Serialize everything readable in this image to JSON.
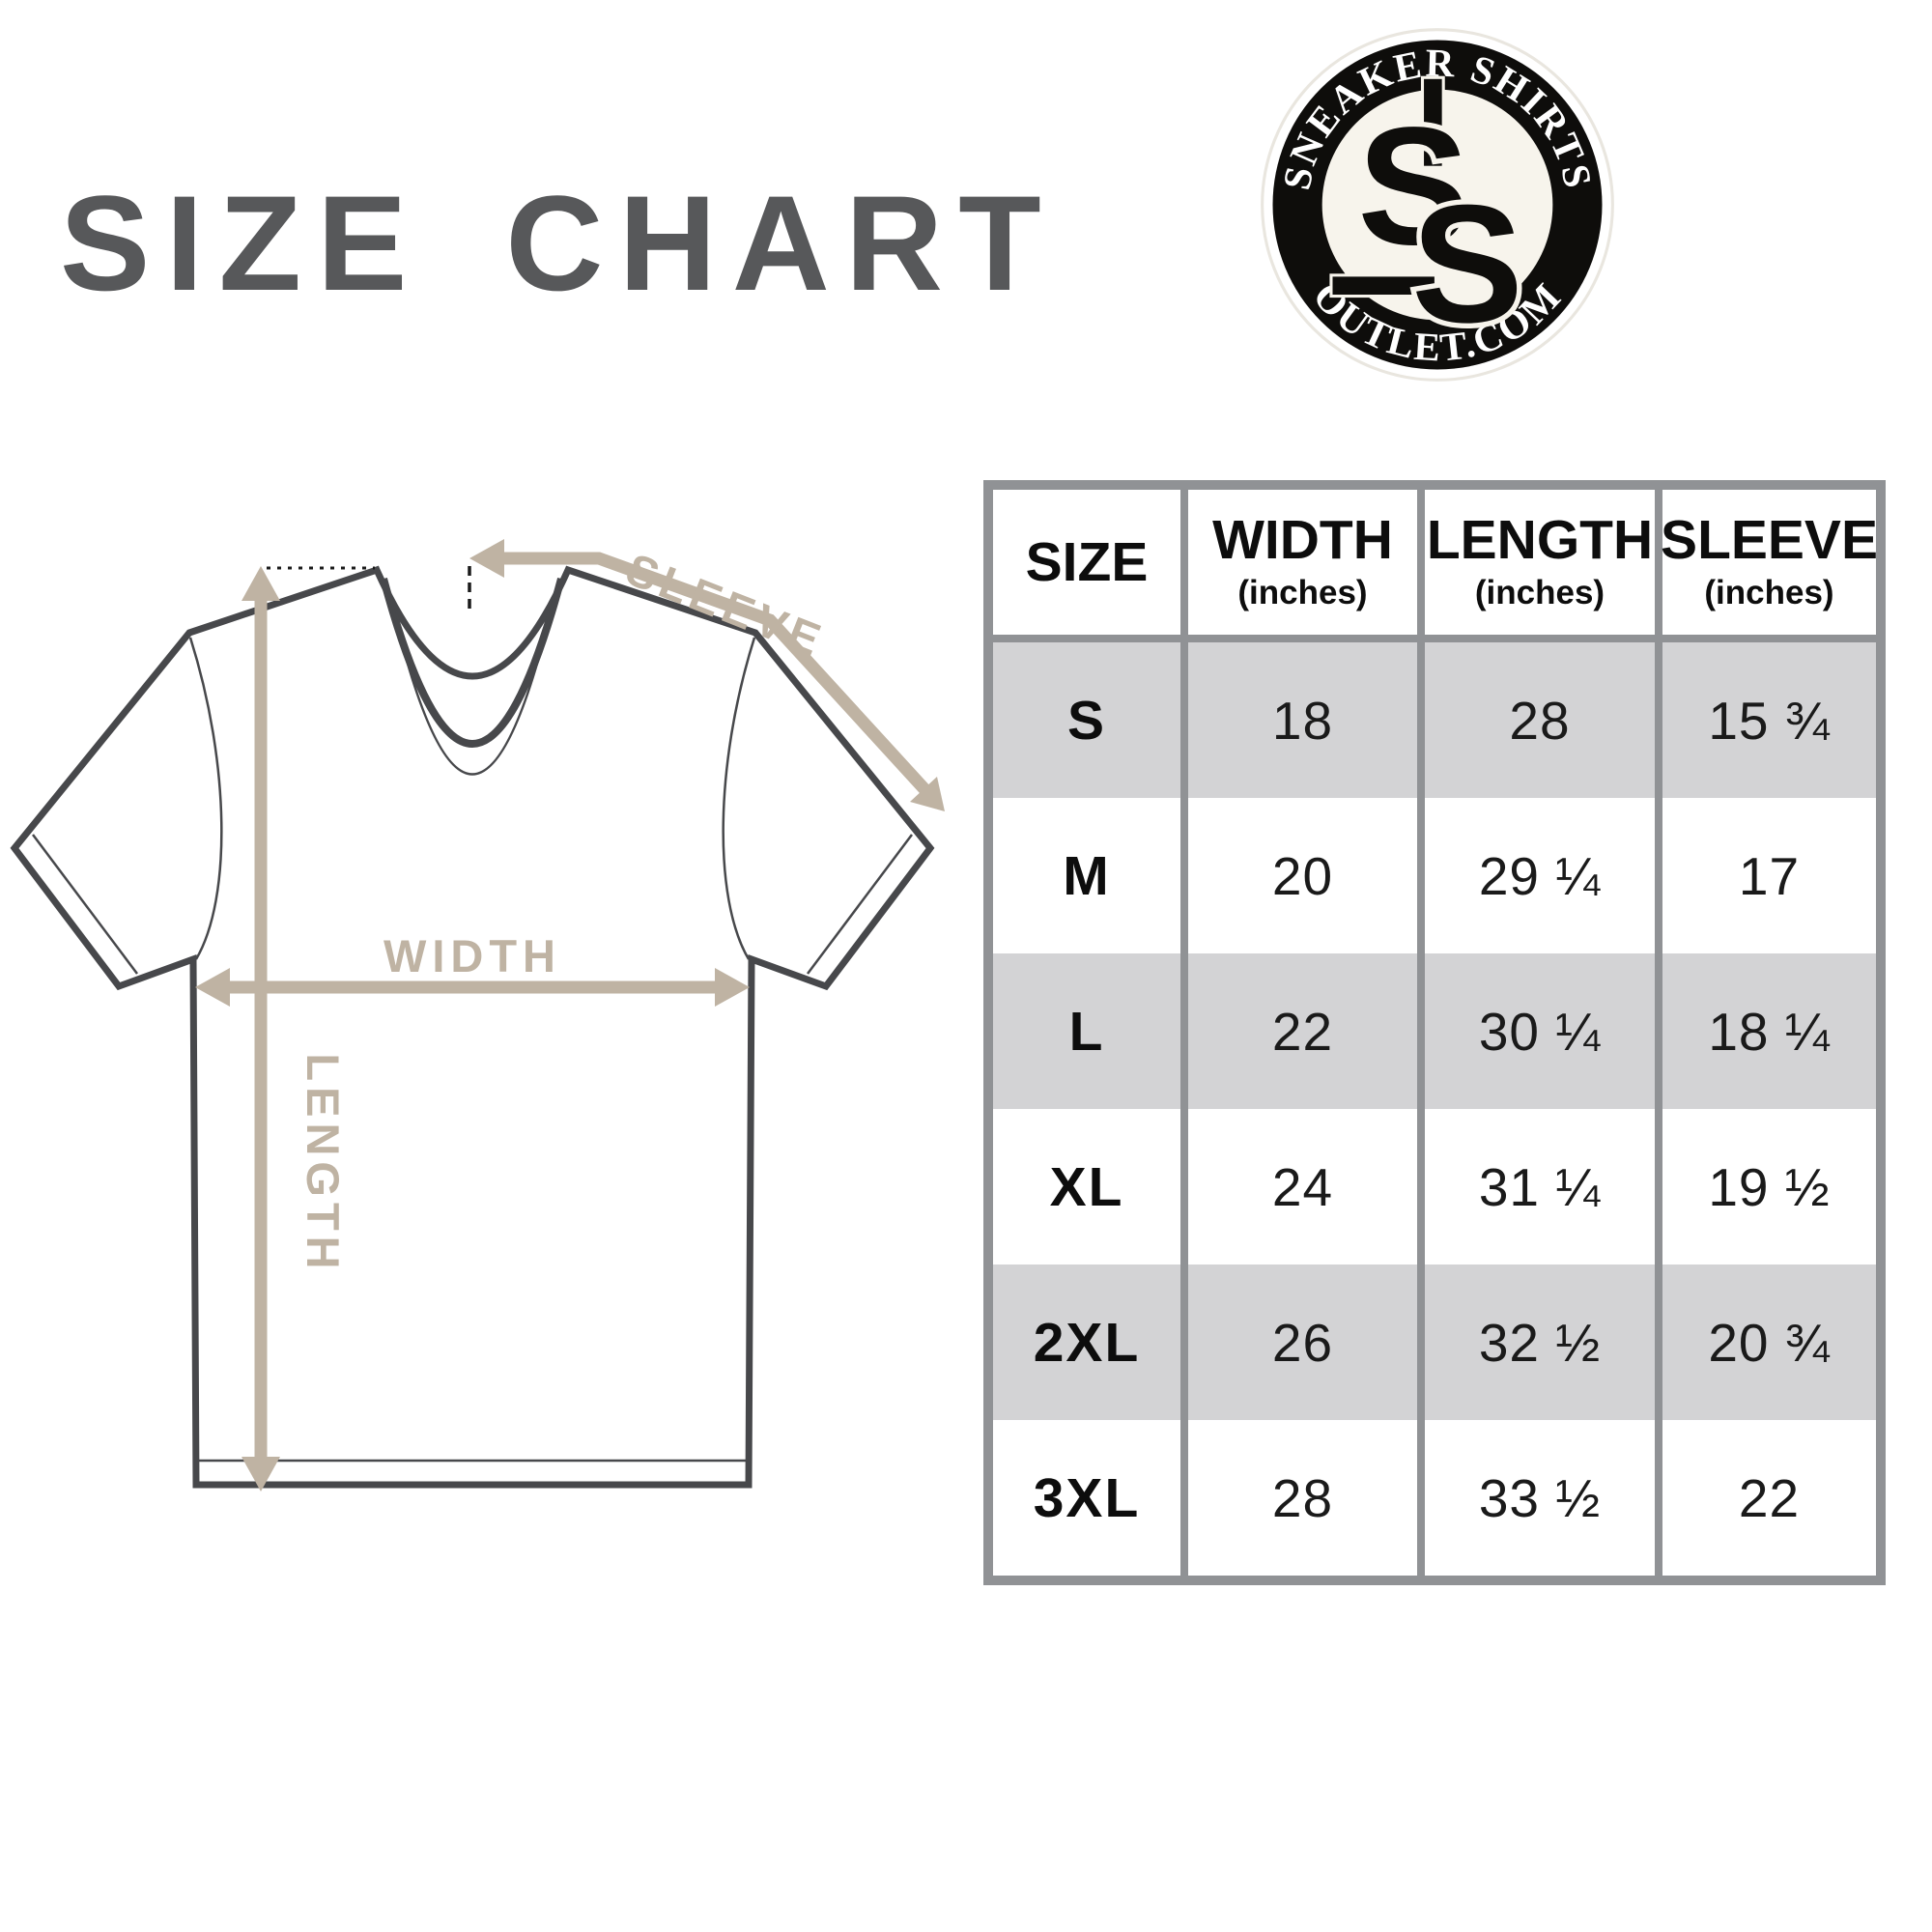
{
  "title": "SIZE CHART",
  "logo": {
    "top_text": "SNEAKER SHIRTS",
    "bottom_text": "OUTLET.COM",
    "monogram_s1": "S",
    "monogram_s2": "S"
  },
  "diagram": {
    "sleeve_label": "SLEEVE",
    "width_label": "WIDTH",
    "length_label": "LENGTH"
  },
  "table": {
    "columns": [
      {
        "label": "SIZE",
        "sub": ""
      },
      {
        "label": "WIDTH",
        "sub": "(inches)"
      },
      {
        "label": "LENGTH",
        "sub": "(inches)"
      },
      {
        "label": "SLEEVE",
        "sub": "(inches)"
      }
    ],
    "rows": [
      {
        "size": "S",
        "width": "18",
        "length": "28",
        "sleeve": "15 ¾"
      },
      {
        "size": "M",
        "width": "20",
        "length": "29 ¼",
        "sleeve": "17"
      },
      {
        "size": "L",
        "width": "22",
        "length": "30 ¼",
        "sleeve": "18 ¼"
      },
      {
        "size": "XL",
        "width": "24",
        "length": "31 ¼",
        "sleeve": "19 ½"
      },
      {
        "size": "2XL",
        "width": "26",
        "length": "32 ½",
        "sleeve": "20 ¾"
      },
      {
        "size": "3XL",
        "width": "28",
        "length": "33 ½",
        "sleeve": "22"
      }
    ]
  },
  "chart_data": {
    "type": "table",
    "title": "SIZE CHART",
    "columns": [
      "SIZE",
      "WIDTH (inches)",
      "LENGTH (inches)",
      "SLEEVE (inches)"
    ],
    "rows": [
      [
        "S",
        18,
        28,
        15.75
      ],
      [
        "M",
        20,
        29.25,
        17
      ],
      [
        "L",
        22,
        30.25,
        18.25
      ],
      [
        "XL",
        24,
        31.25,
        19.5
      ],
      [
        "2XL",
        26,
        32.5,
        20.75
      ],
      [
        "3XL",
        28,
        33.5,
        22
      ]
    ]
  },
  "colors": {
    "title_gray": "#57585a",
    "accent_tan": "#bfb3a3",
    "shirt_outline": "#47484b",
    "table_border_gray": "#909295",
    "row_gray": "#d3d3d5",
    "ink": "#1a1a1a",
    "logo_black": "#0e0d0b",
    "logo_cream": "#f7f4ec"
  }
}
